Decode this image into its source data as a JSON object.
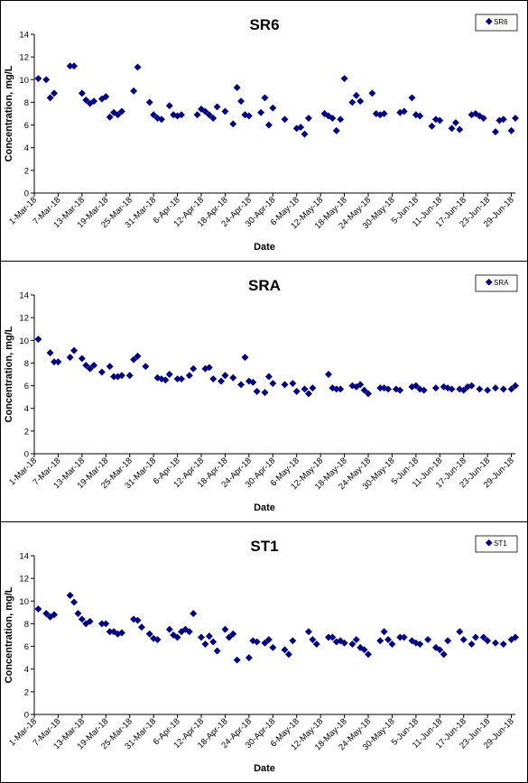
{
  "chart_data": [
    {
      "type": "scatter",
      "title": "SR6",
      "xlabel": "Date",
      "ylabel": "Concentration, mg/L",
      "ylim": [
        0,
        14
      ],
      "y_ticks": [
        "0",
        "2",
        "4",
        "6",
        "8",
        "10",
        "12",
        "14"
      ],
      "x_ticks": [
        "1-Mar-18",
        "7-Mar-18",
        "13-Mar-18",
        "19-Mar-18",
        "25-Mar-18",
        "31-Mar-18",
        "6-Apr-18",
        "12-Apr-18",
        "18-Apr-18",
        "24-Apr-18",
        "30-Apr-18",
        "6-May-18",
        "12-May-18",
        "18-May-18",
        "24-May-18",
        "30-May-18",
        "5-Jun-18",
        "11-Jun-18",
        "17-Jun-18",
        "23-Jun-18",
        "29-Jun-18"
      ],
      "grid": false,
      "legend_position": "top-right",
      "marker_color": "#000080",
      "series": [
        {
          "name": "SR6",
          "x": [
            "2018-03-02",
            "2018-03-04",
            "2018-03-05",
            "2018-03-06",
            "2018-03-10",
            "2018-03-11",
            "2018-03-13",
            "2018-03-14",
            "2018-03-15",
            "2018-03-16",
            "2018-03-18",
            "2018-03-19",
            "2018-03-20",
            "2018-03-21",
            "2018-03-22",
            "2018-03-23",
            "2018-03-26",
            "2018-03-27",
            "2018-03-30",
            "2018-03-31",
            "2018-04-01",
            "2018-04-02",
            "2018-04-04",
            "2018-04-05",
            "2018-04-06",
            "2018-04-07",
            "2018-04-11",
            "2018-04-12",
            "2018-04-13",
            "2018-04-14",
            "2018-04-15",
            "2018-04-16",
            "2018-04-18",
            "2018-04-20",
            "2018-04-21",
            "2018-04-22",
            "2018-04-23",
            "2018-04-24",
            "2018-04-27",
            "2018-04-28",
            "2018-04-29",
            "2018-04-30",
            "2018-05-03",
            "2018-05-06",
            "2018-05-07",
            "2018-05-08",
            "2018-05-09",
            "2018-05-13",
            "2018-05-14",
            "2018-05-15",
            "2018-05-16",
            "2018-05-17",
            "2018-05-18",
            "2018-05-20",
            "2018-05-21",
            "2018-05-22",
            "2018-05-25",
            "2018-05-26",
            "2018-05-27",
            "2018-05-28",
            "2018-06-01",
            "2018-06-02",
            "2018-06-04",
            "2018-06-05",
            "2018-06-06",
            "2018-06-09",
            "2018-06-10",
            "2018-06-11",
            "2018-06-14",
            "2018-06-15",
            "2018-06-16",
            "2018-06-19",
            "2018-06-20",
            "2018-06-21",
            "2018-06-22",
            "2018-06-25",
            "2018-06-26",
            "2018-06-27",
            "2018-06-29",
            "2018-06-30"
          ],
          "y": [
            10.1,
            10.0,
            8.4,
            8.8,
            11.2,
            11.2,
            8.8,
            8.2,
            7.9,
            8.1,
            8.3,
            8.5,
            6.7,
            7.1,
            6.9,
            7.2,
            9.0,
            11.1,
            8.0,
            6.9,
            6.6,
            6.5,
            7.7,
            6.9,
            6.8,
            6.9,
            6.9,
            7.4,
            7.2,
            6.9,
            6.6,
            7.6,
            7.2,
            6.1,
            9.3,
            8.1,
            6.9,
            6.8,
            7.1,
            8.4,
            6.0,
            7.5,
            6.5,
            5.7,
            5.8,
            5.2,
            6.6,
            7.0,
            6.8,
            6.6,
            5.5,
            6.5,
            10.1,
            8.0,
            8.6,
            8.1,
            8.8,
            7.0,
            6.9,
            7.0,
            7.1,
            7.2,
            8.4,
            6.9,
            6.8,
            5.9,
            6.5,
            6.4,
            5.7,
            6.2,
            5.6,
            6.9,
            7.0,
            6.8,
            6.6,
            5.4,
            6.4,
            6.5,
            5.5,
            6.6
          ]
        }
      ]
    },
    {
      "type": "scatter",
      "title": "SRA",
      "xlabel": "Date",
      "ylabel": "Concentration, mg/L",
      "ylim": [
        0,
        14
      ],
      "y_ticks": [
        "0",
        "2",
        "4",
        "6",
        "8",
        "10",
        "12",
        "14"
      ],
      "x_ticks": [
        "1-Mar-18",
        "7-Mar-18",
        "13-Mar-18",
        "19-Mar-18",
        "25-Mar-18",
        "31-Mar-18",
        "6-Apr-18",
        "12-Apr-18",
        "18-Apr-18",
        "24-Apr-18",
        "30-Apr-18",
        "6-May-18",
        "12-May-18",
        "18-May-18",
        "24-May-18",
        "30-May-18",
        "5-Jun-18",
        "11-Jun-18",
        "17-Jun-18",
        "23-Jun-18",
        "29-Jun-18"
      ],
      "grid": false,
      "legend_position": "top-right",
      "marker_color": "#000080",
      "series": [
        {
          "name": "SRA",
          "x": [
            "2018-03-02",
            "2018-03-05",
            "2018-03-06",
            "2018-03-07",
            "2018-03-10",
            "2018-03-11",
            "2018-03-13",
            "2018-03-14",
            "2018-03-15",
            "2018-03-16",
            "2018-03-18",
            "2018-03-20",
            "2018-03-21",
            "2018-03-22",
            "2018-03-23",
            "2018-03-25",
            "2018-03-26",
            "2018-03-27",
            "2018-03-29",
            "2018-04-01",
            "2018-04-02",
            "2018-04-03",
            "2018-04-04",
            "2018-04-06",
            "2018-04-07",
            "2018-04-09",
            "2018-04-10",
            "2018-04-13",
            "2018-04-14",
            "2018-04-15",
            "2018-04-17",
            "2018-04-18",
            "2018-04-20",
            "2018-04-22",
            "2018-04-23",
            "2018-04-24",
            "2018-04-25",
            "2018-04-26",
            "2018-04-28",
            "2018-04-29",
            "2018-04-30",
            "2018-05-03",
            "2018-05-05",
            "2018-05-06",
            "2018-05-08",
            "2018-05-09",
            "2018-05-10",
            "2018-05-14",
            "2018-05-15",
            "2018-05-16",
            "2018-05-17",
            "2018-05-20",
            "2018-05-21",
            "2018-05-22",
            "2018-05-23",
            "2018-05-24",
            "2018-05-27",
            "2018-05-28",
            "2018-05-29",
            "2018-05-31",
            "2018-06-01",
            "2018-06-04",
            "2018-06-05",
            "2018-06-06",
            "2018-06-07",
            "2018-06-10",
            "2018-06-12",
            "2018-06-13",
            "2018-06-14",
            "2018-06-16",
            "2018-06-17",
            "2018-06-18",
            "2018-06-19",
            "2018-06-21",
            "2018-06-23",
            "2018-06-25",
            "2018-06-27",
            "2018-06-29",
            "2018-06-30"
          ],
          "y": [
            10.1,
            8.9,
            8.1,
            8.1,
            8.5,
            9.1,
            8.4,
            7.8,
            7.5,
            7.8,
            7.2,
            7.7,
            6.8,
            6.8,
            6.9,
            6.9,
            8.3,
            8.6,
            7.7,
            6.7,
            6.6,
            6.5,
            7.0,
            6.6,
            6.6,
            6.9,
            7.5,
            7.5,
            7.6,
            6.6,
            6.4,
            6.9,
            6.7,
            6.1,
            8.5,
            6.4,
            6.3,
            5.5,
            5.4,
            6.8,
            6.2,
            6.1,
            6.2,
            5.5,
            5.7,
            5.3,
            5.8,
            7.0,
            5.8,
            5.7,
            5.7,
            6.0,
            5.9,
            6.1,
            5.6,
            5.3,
            5.8,
            5.8,
            5.7,
            5.7,
            5.6,
            5.9,
            6.0,
            5.7,
            5.6,
            5.8,
            5.9,
            5.8,
            5.7,
            5.7,
            5.6,
            5.9,
            6.0,
            5.7,
            5.6,
            5.8,
            5.7,
            5.7,
            6.0
          ]
        }
      ]
    },
    {
      "type": "scatter",
      "title": "ST1",
      "xlabel": "Date",
      "ylabel": "Concentration, mg/L",
      "ylim": [
        0,
        14
      ],
      "y_ticks": [
        "0",
        "2",
        "4",
        "6",
        "8",
        "10",
        "12",
        "14"
      ],
      "x_ticks": [
        "1-Mar-18",
        "7-Mar-18",
        "13-Mar-18",
        "19-Mar-18",
        "25-Mar-18",
        "31-Mar-18",
        "6-Apr-18",
        "12-Apr-18",
        "18-Apr-18",
        "24-Apr-18",
        "30-Apr-18",
        "6-May-18",
        "12-May-18",
        "18-May-18",
        "24-May-18",
        "30-May-18",
        "5-Jun-18",
        "11-Jun-18",
        "17-Jun-18",
        "23-Jun-18",
        "29-Jun-18"
      ],
      "grid": false,
      "legend_position": "top-right",
      "marker_color": "#000080",
      "series": [
        {
          "name": "ST1",
          "x": [
            "2018-03-02",
            "2018-03-04",
            "2018-03-05",
            "2018-03-06",
            "2018-03-10",
            "2018-03-11",
            "2018-03-12",
            "2018-03-13",
            "2018-03-14",
            "2018-03-15",
            "2018-03-18",
            "2018-03-19",
            "2018-03-20",
            "2018-03-21",
            "2018-03-22",
            "2018-03-23",
            "2018-03-26",
            "2018-03-27",
            "2018-03-28",
            "2018-03-30",
            "2018-03-31",
            "2018-04-01",
            "2018-04-04",
            "2018-04-05",
            "2018-04-06",
            "2018-04-07",
            "2018-04-08",
            "2018-04-09",
            "2018-04-10",
            "2018-04-12",
            "2018-04-13",
            "2018-04-14",
            "2018-04-15",
            "2018-04-16",
            "2018-04-18",
            "2018-04-19",
            "2018-04-20",
            "2018-04-21",
            "2018-04-24",
            "2018-04-25",
            "2018-04-26",
            "2018-04-28",
            "2018-04-29",
            "2018-04-30",
            "2018-05-03",
            "2018-05-04",
            "2018-05-05",
            "2018-05-09",
            "2018-05-10",
            "2018-05-11",
            "2018-05-14",
            "2018-05-15",
            "2018-05-16",
            "2018-05-17",
            "2018-05-18",
            "2018-05-20",
            "2018-05-21",
            "2018-05-22",
            "2018-05-23",
            "2018-05-24",
            "2018-05-27",
            "2018-05-28",
            "2018-05-29",
            "2018-05-30",
            "2018-06-01",
            "2018-06-02",
            "2018-06-04",
            "2018-06-05",
            "2018-06-06",
            "2018-06-08",
            "2018-06-10",
            "2018-06-11",
            "2018-06-12",
            "2018-06-13",
            "2018-06-16",
            "2018-06-17",
            "2018-06-19",
            "2018-06-20",
            "2018-06-22",
            "2018-06-23",
            "2018-06-25",
            "2018-06-27",
            "2018-06-29",
            "2018-06-30"
          ],
          "y": [
            9.3,
            8.9,
            8.6,
            8.8,
            10.5,
            9.9,
            8.9,
            8.4,
            8.0,
            8.2,
            8.0,
            8.0,
            7.3,
            7.3,
            7.1,
            7.2,
            8.4,
            8.3,
            7.7,
            7.1,
            6.7,
            6.6,
            7.5,
            7.0,
            6.8,
            7.3,
            7.5,
            7.3,
            8.9,
            6.8,
            6.2,
            6.9,
            6.4,
            5.6,
            7.5,
            6.8,
            7.1,
            4.8,
            5.0,
            6.5,
            6.4,
            6.3,
            6.6,
            5.9,
            5.7,
            5.3,
            6.5,
            7.3,
            6.6,
            6.2,
            6.8,
            6.8,
            6.4,
            6.5,
            6.3,
            6.2,
            6.6,
            5.9,
            5.7,
            5.3,
            6.5,
            7.3,
            6.6,
            6.2,
            6.8,
            6.8,
            6.5,
            6.3,
            6.2,
            6.6,
            5.9,
            5.7,
            5.3,
            6.5,
            7.3,
            6.6,
            6.2,
            6.8,
            6.8,
            6.5,
            6.3,
            6.2,
            6.6,
            6.8
          ]
        }
      ]
    }
  ]
}
